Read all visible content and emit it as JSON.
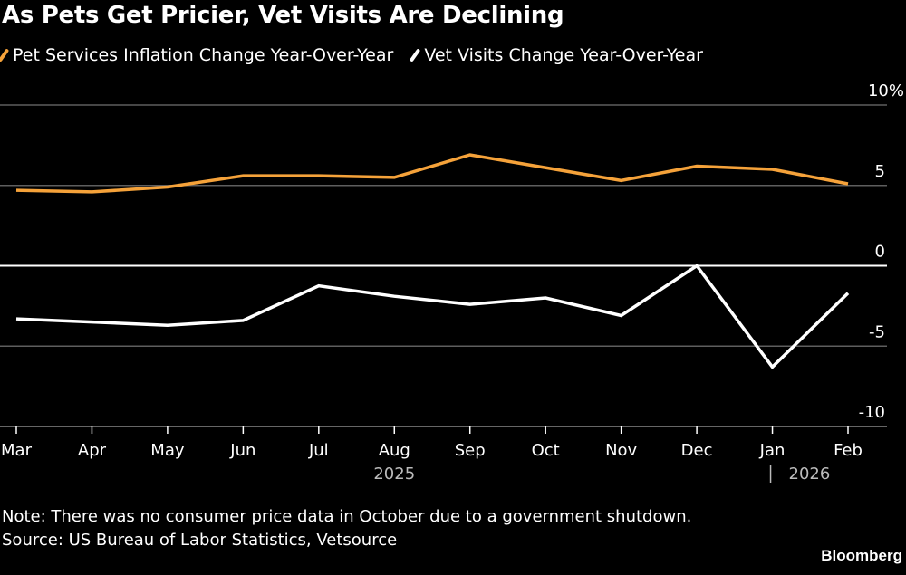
{
  "header": {
    "title": "As Pets Get Pricier, Vet Visits Are Declining"
  },
  "legend": [
    {
      "label": "Pet Services Inflation Change Year-Over-Year",
      "color": "#F5A23A"
    },
    {
      "label": "Vet Visits Change Year-Over-Year",
      "color": "#FFFFFF"
    }
  ],
  "footer": {
    "note": "Note: There was no consumer price data in October due to a government shutdown.",
    "source": "Source: US Bureau of Labor Statistics, Vetsource",
    "brand": "Bloomberg"
  },
  "chart_data": {
    "type": "line",
    "title": "As Pets Get Pricier, Vet Visits Are Declining",
    "xlabel": "",
    "ylabel": "",
    "categories": [
      "Mar",
      "Apr",
      "May",
      "Jun",
      "Jul",
      "Aug",
      "Sep",
      "Oct",
      "Nov",
      "Dec",
      "Jan",
      "Feb"
    ],
    "year_labels": [
      {
        "label": "2025",
        "at": "Aug"
      },
      {
        "label": "2026",
        "at": "Jan",
        "separator": true
      }
    ],
    "series": [
      {
        "name": "Pet Services Inflation Change Year-Over-Year",
        "color": "#F5A23A",
        "values": [
          4.7,
          4.6,
          4.9,
          5.6,
          5.6,
          5.5,
          6.9,
          null,
          5.3,
          6.2,
          6.0,
          5.1
        ]
      },
      {
        "name": "Vet Visits Change Year-Over-Year",
        "color": "#FFFFFF",
        "values": [
          -3.3,
          -3.5,
          -3.7,
          -3.4,
          -1.25,
          -1.9,
          -2.4,
          -2.0,
          -3.1,
          0.0,
          -6.3,
          -1.7
        ]
      }
    ],
    "ylim": [
      -10,
      10
    ],
    "yticks": [
      10,
      5,
      0,
      -5,
      -10
    ],
    "ytick_labels": [
      "10%",
      "5",
      "0",
      "-5",
      "-10"
    ],
    "y_axis_side": "right",
    "grid": true,
    "legend_position": "top-left",
    "connect_gaps": true
  }
}
